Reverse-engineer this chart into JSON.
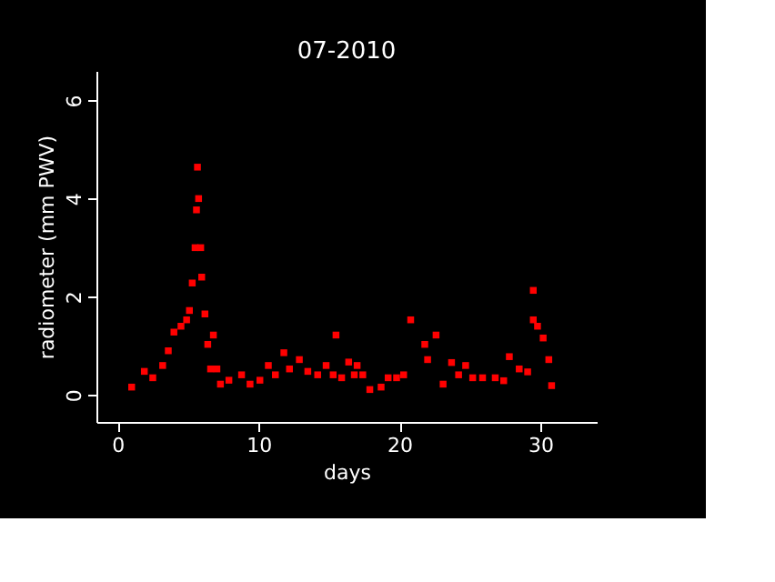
{
  "chart_data": {
    "type": "scatter",
    "title": "07-2010",
    "xlabel": "days",
    "ylabel": "radiometer (mm PWV)",
    "xlim": [
      -1.5,
      34
    ],
    "ylim": [
      -0.55,
      6.6
    ],
    "xticks": [
      0,
      10,
      20,
      30
    ],
    "yticks": [
      0,
      2,
      4,
      6
    ],
    "grid": false,
    "marker": "square",
    "series": [
      {
        "color": "#ff0000",
        "x": [
          1.0,
          1.9,
          2.5,
          3.2,
          3.6,
          4.0,
          4.5,
          4.9,
          5.1,
          5.3,
          5.5,
          5.6,
          5.67,
          5.75,
          5.9,
          5.97,
          6.2,
          6.4,
          6.6,
          6.8,
          7.05,
          7.3,
          7.9,
          8.8,
          9.4,
          10.1,
          10.7,
          11.2,
          11.8,
          12.2,
          12.9,
          13.5,
          14.2,
          14.8,
          15.3,
          15.5,
          15.9,
          16.4,
          16.8,
          17.0,
          17.4,
          17.9,
          18.7,
          19.2,
          19.8,
          20.3,
          20.8,
          21.8,
          22.0,
          22.6,
          23.1,
          23.7,
          24.2,
          24.7,
          25.2,
          25.9,
          26.8,
          27.4,
          27.8,
          28.5,
          29.1,
          29.5,
          29.5,
          29.8,
          30.2,
          30.6,
          30.8
        ],
        "values": [
          0.16,
          0.48,
          0.35,
          0.6,
          0.9,
          1.28,
          1.4,
          1.53,
          1.72,
          2.28,
          3.0,
          3.77,
          4.64,
          4.0,
          3.0,
          2.4,
          1.65,
          1.03,
          0.53,
          1.22,
          0.53,
          0.22,
          0.3,
          0.41,
          0.22,
          0.3,
          0.6,
          0.41,
          0.86,
          0.53,
          0.72,
          0.48,
          0.41,
          0.6,
          0.41,
          1.22,
          0.35,
          0.67,
          0.41,
          0.6,
          0.41,
          0.11,
          0.16,
          0.35,
          0.35,
          0.41,
          1.53,
          1.03,
          0.72,
          1.22,
          0.22,
          0.66,
          0.41,
          0.6,
          0.35,
          0.35,
          0.35,
          0.29,
          0.78,
          0.53,
          0.47,
          1.53,
          2.13,
          1.4,
          1.16,
          0.72,
          0.19
        ]
      }
    ]
  }
}
